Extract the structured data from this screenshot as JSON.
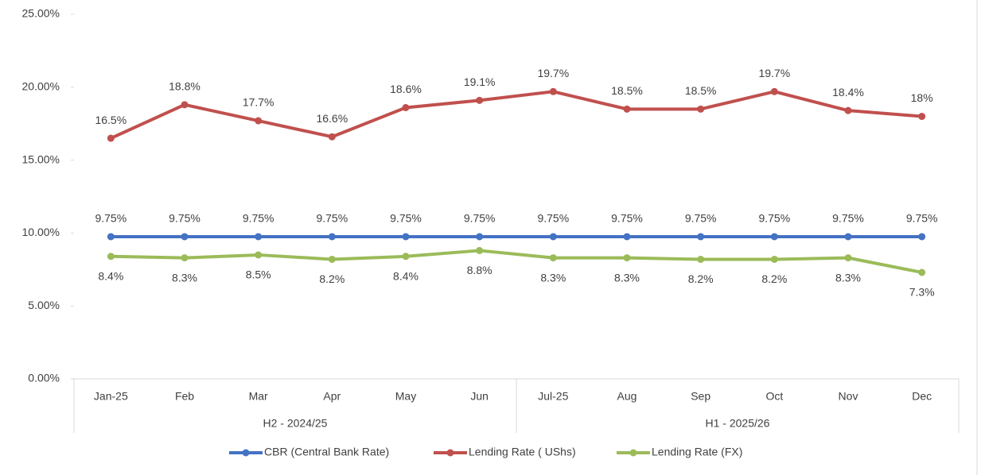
{
  "chart_data": {
    "type": "line",
    "categories": [
      "Jan-25",
      "Feb",
      "Mar",
      "Apr",
      "May",
      "Jun",
      "Jul-25",
      "Aug",
      "Sep",
      "Oct",
      "Nov",
      "Dec"
    ],
    "group_labels": [
      "H2 - 2024/25",
      "H1 - 2025/26"
    ],
    "ylim": [
      0,
      25
    ],
    "yticks": [
      {
        "value": 0,
        "label": "0.00%"
      },
      {
        "value": 5,
        "label": "5.00%"
      },
      {
        "value": 10,
        "label": "10.00%"
      },
      {
        "value": 15,
        "label": "15.00%"
      },
      {
        "value": 20,
        "label": "20.00%"
      },
      {
        "value": 25,
        "label": "25.00%"
      }
    ],
    "grid": false,
    "legend": "bottom",
    "series": [
      {
        "name": "CBR (Central Bank Rate)",
        "color": "#4472c4",
        "values": [
          9.75,
          9.75,
          9.75,
          9.75,
          9.75,
          9.75,
          9.75,
          9.75,
          9.75,
          9.75,
          9.75,
          9.75
        ],
        "value_labels": [
          "9.75%",
          "9.75%",
          "9.75%",
          "9.75%",
          "9.75%",
          "9.75%",
          "9.75%",
          "9.75%",
          "9.75%",
          "9.75%",
          "9.75%",
          "9.75%"
        ]
      },
      {
        "name": "Lending Rate ( UShs)",
        "color": "#c0504d",
        "values": [
          16.5,
          18.8,
          17.7,
          16.6,
          18.6,
          19.1,
          19.7,
          18.5,
          18.5,
          19.7,
          18.4,
          18
        ],
        "value_labels": [
          "16.5%",
          "18.8%",
          "17.7%",
          "16.6%",
          "18.6%",
          "19.1%",
          "19.7%",
          "18.5%",
          "18.5%",
          "19.7%",
          "18.4%",
          "18%"
        ]
      },
      {
        "name": "Lending Rate (FX)",
        "color": "#9bbb59",
        "values": [
          8.4,
          8.3,
          8.5,
          8.2,
          8.4,
          8.8,
          8.3,
          8.3,
          8.2,
          8.2,
          8.3,
          7.3
        ],
        "value_labels": [
          "8.4%",
          "8.3%",
          "8.5%",
          "8.2%",
          "8.4%",
          "8.8%",
          "8.3%",
          "8.3%",
          "8.2%",
          "8.2%",
          "8.3%",
          "7.3%"
        ]
      }
    ]
  }
}
